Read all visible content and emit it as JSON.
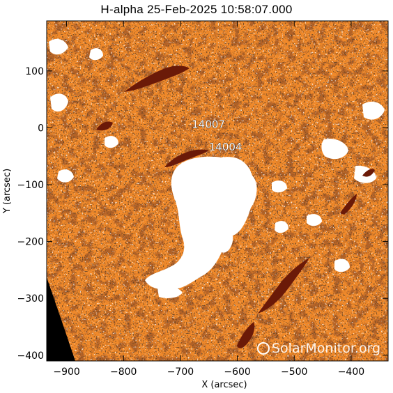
{
  "title": "H-alpha 25-Feb-2025 10:58:07.000",
  "x_axis": {
    "label": "X (arcsec)",
    "range": [
      -935,
      -335
    ],
    "ticks": [
      -900,
      -800,
      -700,
      -600,
      -500,
      -400
    ],
    "tick_labels": [
      "−900",
      "−800",
      "−700",
      "−600",
      "−500",
      "−400"
    ]
  },
  "y_axis": {
    "label": "Y (arcsec)",
    "range": [
      -410,
      188
    ],
    "ticks": [
      100,
      0,
      -100,
      -200,
      -300,
      -400
    ],
    "tick_labels": [
      "100",
      "0",
      "−100",
      "−200",
      "−300",
      "−400"
    ]
  },
  "active_regions": [
    {
      "label": "14007",
      "x": -680,
      "y": 0
    },
    {
      "label": "14004",
      "x": -650,
      "y": -40
    }
  ],
  "watermark": "SolarMonitor.org",
  "colors": {
    "chromosphere": "#f0892a",
    "filament": "#6b1a08",
    "plage": "#ffffff",
    "space": "#000000"
  }
}
